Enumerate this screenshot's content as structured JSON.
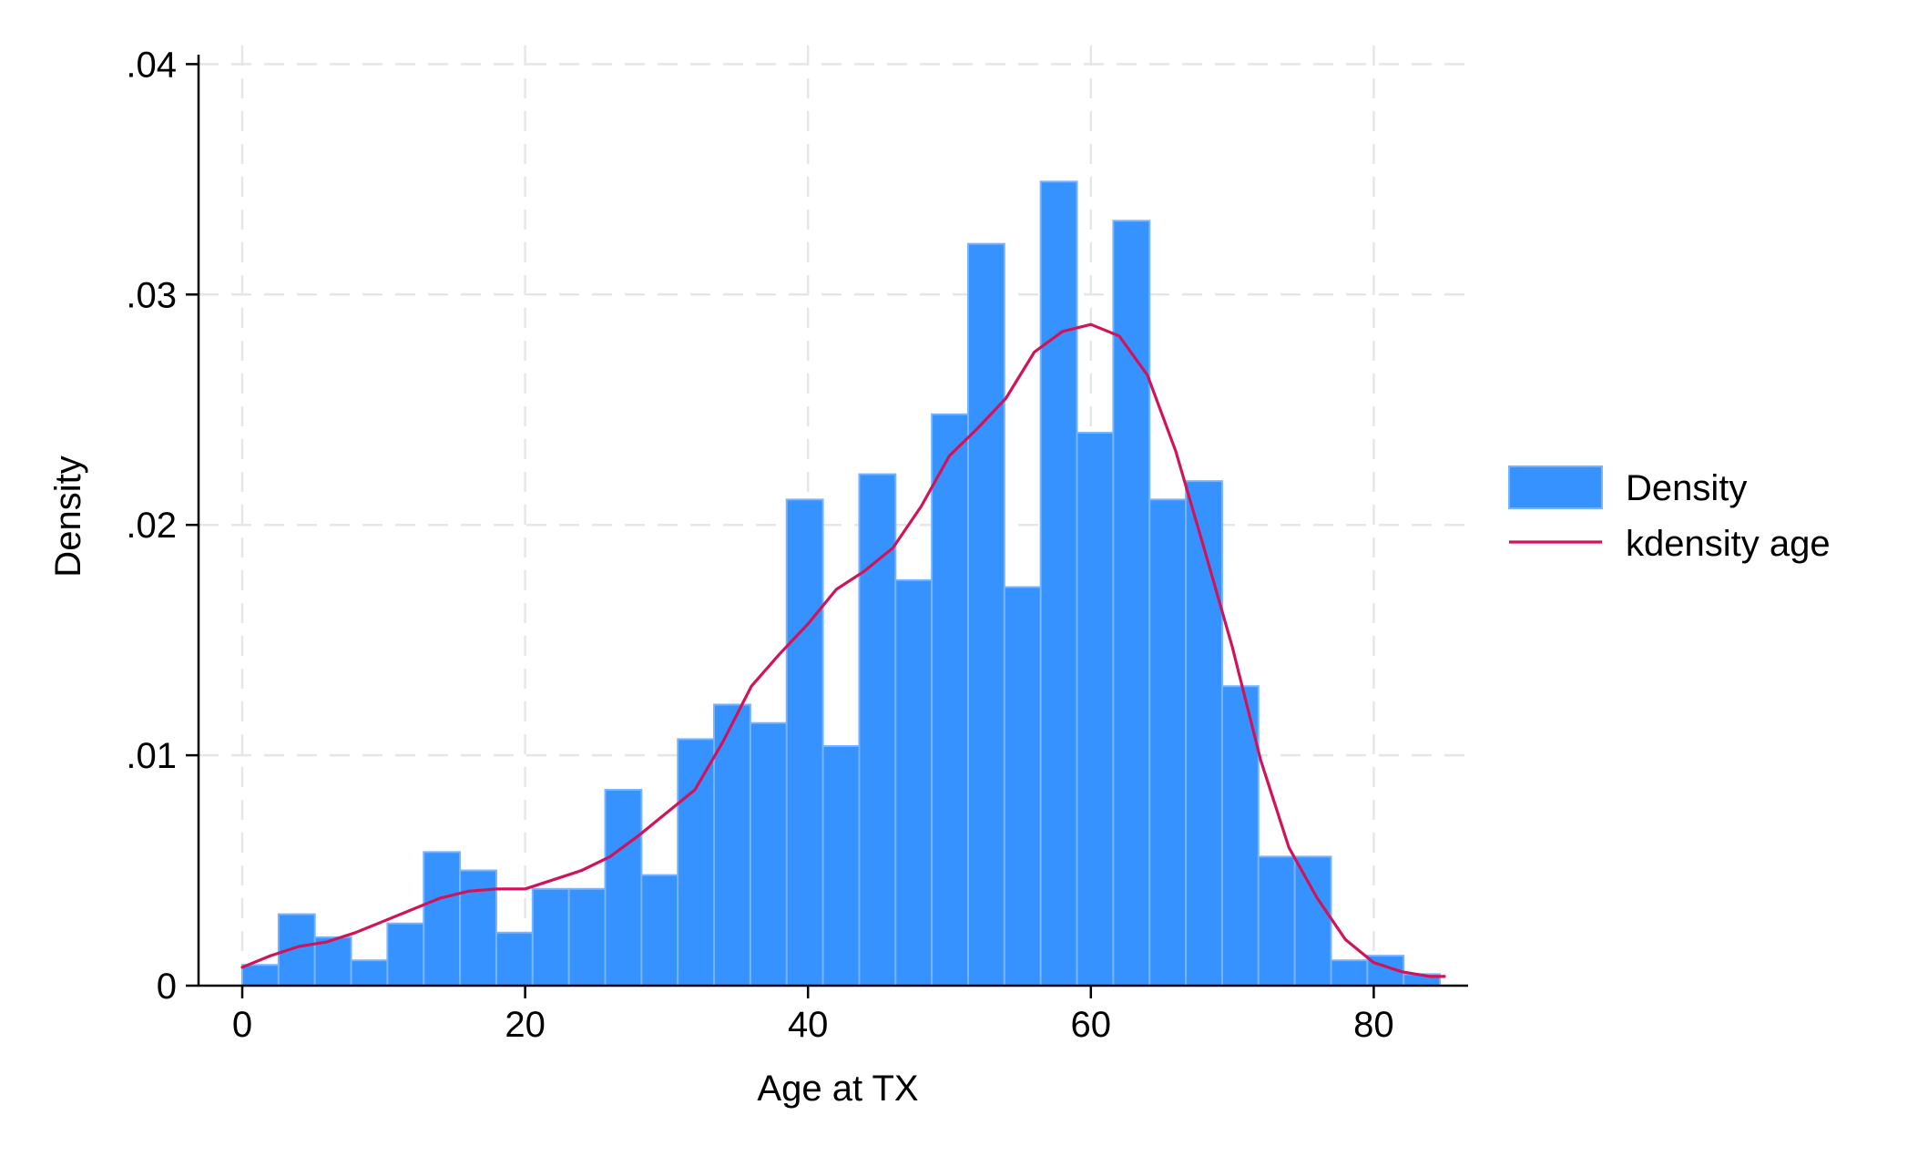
{
  "chart_data": {
    "type": "bar",
    "subtype": "histogram-with-density-line",
    "title": "",
    "xlabel": "Age at TX",
    "ylabel": "Density",
    "xlim": [
      -5,
      88
    ],
    "ylim": [
      0,
      0.0415
    ],
    "x_ticks": [
      {
        "value": 0,
        "label": "0"
      },
      {
        "value": 20,
        "label": "20"
      },
      {
        "value": 40,
        "label": "40"
      },
      {
        "value": 60,
        "label": "60"
      },
      {
        "value": 80,
        "label": "80"
      }
    ],
    "y_ticks": [
      {
        "value": 0,
        "label": "0"
      },
      {
        "value": 0.01,
        "label": ".01"
      },
      {
        "value": 0.02,
        "label": ".02"
      },
      {
        "value": 0.03,
        "label": ".03"
      },
      {
        "value": 0.04,
        "label": ".04"
      }
    ],
    "grid": true,
    "legend_position": "right",
    "colors": {
      "bar_fill": "#3592ff",
      "bar_edge": "#77b3ff",
      "kde_line": "#d1145a"
    },
    "bin_width": 2.566,
    "bin_start": 0,
    "histogram": {
      "name": "Density",
      "values": [
        0.0009,
        0.0031,
        0.0021,
        0.0011,
        0.0027,
        0.0058,
        0.005,
        0.0023,
        0.0042,
        0.0042,
        0.0085,
        0.0048,
        0.0107,
        0.0122,
        0.0114,
        0.0211,
        0.0104,
        0.0222,
        0.0176,
        0.0248,
        0.0322,
        0.0173,
        0.0349,
        0.024,
        0.0332,
        0.0211,
        0.0219,
        0.013,
        0.0056,
        0.0056,
        0.0011,
        0.0013,
        0.0005
      ]
    },
    "kde": {
      "name": "kdensity age",
      "x": [
        0,
        2,
        4,
        6,
        8,
        10,
        12,
        14,
        16,
        18,
        20,
        22,
        24,
        26,
        28,
        30,
        32,
        34,
        36,
        38,
        40,
        42,
        44,
        46,
        48,
        50,
        52,
        54,
        56,
        58,
        60,
        62,
        64,
        66,
        68,
        70,
        72,
        74,
        76,
        78,
        80,
        82,
        84,
        85
      ],
      "y": [
        0.0008,
        0.0013,
        0.0017,
        0.0019,
        0.0023,
        0.0028,
        0.0033,
        0.0038,
        0.0041,
        0.0042,
        0.0042,
        0.0046,
        0.005,
        0.0056,
        0.0065,
        0.0075,
        0.0085,
        0.0106,
        0.013,
        0.0144,
        0.0157,
        0.0172,
        0.018,
        0.019,
        0.0208,
        0.023,
        0.0242,
        0.0255,
        0.0275,
        0.0284,
        0.0287,
        0.0282,
        0.0265,
        0.0232,
        0.019,
        0.0147,
        0.0098,
        0.006,
        0.0038,
        0.002,
        0.001,
        0.0006,
        0.0004,
        0.0004
      ]
    },
    "legend": [
      {
        "label": "Density",
        "kind": "bar"
      },
      {
        "label": "kdensity age",
        "kind": "line"
      }
    ]
  }
}
